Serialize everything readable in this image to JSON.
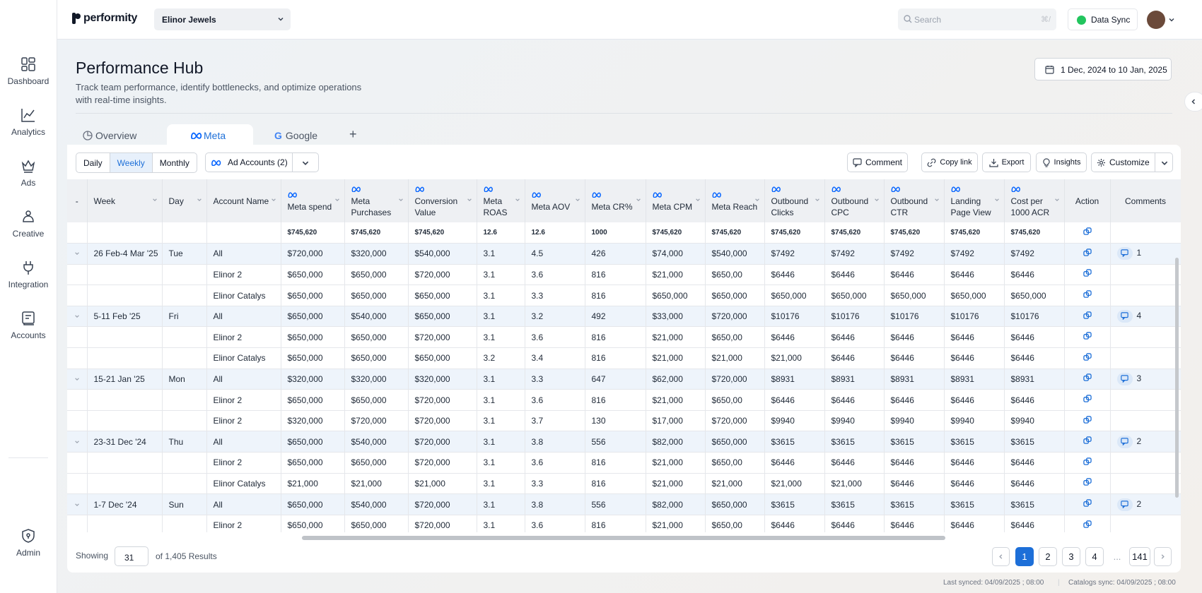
{
  "app": {
    "logo": "performity",
    "brand": "Elinor Jewels",
    "search_placeholder": "Search",
    "search_kbd": "⌘/",
    "data_sync": "Data Sync"
  },
  "sidebar": {
    "items": [
      {
        "label": "Dashboard",
        "icon": "dashboard-icon"
      },
      {
        "label": "Analytics",
        "icon": "analytics-icon"
      },
      {
        "label": "Ads",
        "icon": "crown-icon"
      },
      {
        "label": "Creative",
        "icon": "creative-icon"
      },
      {
        "label": "Integration",
        "icon": "plug-icon"
      },
      {
        "label": "Accounts",
        "icon": "accounts-icon"
      }
    ],
    "admin": "Admin"
  },
  "page": {
    "title": "Performance Hub",
    "subtitle": "Track team performance, identify bottlenecks, and optimize operations with real-time insights.",
    "date_range": "1 Dec, 2024 to 10 Jan, 2025"
  },
  "tabs": [
    "Overview",
    "Meta",
    "Google"
  ],
  "toolbar": {
    "periods": [
      "Daily",
      "Weekly",
      "Monthly"
    ],
    "active_period": "Weekly",
    "ad_accounts": "Ad Accounts (2)",
    "comment": "Comment",
    "copy_link": "Copy link",
    "export": "Export",
    "insights": "Insights",
    "customize": "Customize"
  },
  "table": {
    "columns": [
      "-",
      "Week",
      "Day",
      "Account Name",
      "Meta spend",
      "Meta Purchases",
      "Conversion Value",
      "Meta ROAS",
      "Meta AOV",
      "Meta CR%",
      "Meta CPM",
      "Meta Reach",
      "Outbound Clicks",
      "Outbound CPC",
      "Outbound CTR",
      "Landing Page View",
      "Cost per 1000 ACR",
      "Action",
      "Comments"
    ],
    "summary": [
      "",
      "",
      "",
      "",
      "$745,620",
      "$745,620",
      "$745,620",
      "12.6",
      "12.6",
      "1000",
      "$745,620",
      "$745,620",
      "$745,620",
      "$745,620",
      "$745,620",
      "$745,620",
      "$745,620"
    ],
    "rows": [
      {
        "group": true,
        "week": "26 Feb-4 Mar '25",
        "day": "Tue",
        "account": "All",
        "v": [
          "$720,000",
          "$320,000",
          "$540,000",
          "3.1",
          "4.5",
          "426",
          "$74,000",
          "$540,000",
          "$7492",
          "$7492",
          "$7492",
          "$7492",
          "$7492"
        ],
        "comments": "1"
      },
      {
        "group": false,
        "week": "",
        "day": "",
        "account": "Elinor 2",
        "v": [
          "$650,000",
          "$650,000",
          "$720,000",
          "3.1",
          "3.6",
          "816",
          "$21,000",
          "$650,00",
          "$6446",
          "$6446",
          "$6446",
          "$6446",
          "$6446"
        ],
        "comments": ""
      },
      {
        "group": false,
        "week": "",
        "day": "",
        "account": "Elinor Catalys",
        "v": [
          "$650,000",
          "$650,000",
          "$650,000",
          "3.1",
          "3.3",
          "816",
          "$650,000",
          "$650,000",
          "$650,000",
          "$650,000",
          "$650,000",
          "$650,000",
          "$650,000"
        ],
        "comments": ""
      },
      {
        "group": true,
        "week": "5-11 Feb '25",
        "day": "Fri",
        "account": "All",
        "v": [
          "$650,000",
          "$540,000",
          "$650,000",
          "3.1",
          "3.2",
          "492",
          "$33,000",
          "$720,000",
          "$10176",
          "$10176",
          "$10176",
          "$10176",
          "$10176"
        ],
        "comments": "4"
      },
      {
        "group": false,
        "week": "",
        "day": "",
        "account": "Elinor 2",
        "v": [
          "$650,000",
          "$650,000",
          "$720,000",
          "3.1",
          "3.6",
          "816",
          "$21,000",
          "$650,00",
          "$6446",
          "$6446",
          "$6446",
          "$6446",
          "$6446"
        ],
        "comments": ""
      },
      {
        "group": false,
        "week": "",
        "day": "",
        "account": "Elinor Catalys",
        "v": [
          "$650,000",
          "$650,000",
          "$650,000",
          "3.2",
          "3.4",
          "816",
          "$21,000",
          "$21,000",
          "$21,000",
          "$6446",
          "$6446",
          "$6446",
          "$6446"
        ],
        "comments": ""
      },
      {
        "group": true,
        "week": "15-21 Jan '25",
        "day": "Mon",
        "account": "All",
        "v": [
          "$320,000",
          "$320,000",
          "$320,000",
          "3.1",
          "3.3",
          "647",
          "$62,000",
          "$720,000",
          "$8931",
          "$8931",
          "$8931",
          "$8931",
          "$8931"
        ],
        "comments": "3"
      },
      {
        "group": false,
        "week": "",
        "day": "",
        "account": "Elinor 2",
        "v": [
          "$650,000",
          "$650,000",
          "$720,000",
          "3.1",
          "3.6",
          "816",
          "$21,000",
          "$650,00",
          "$6446",
          "$6446",
          "$6446",
          "$6446",
          "$6446"
        ],
        "comments": ""
      },
      {
        "group": false,
        "week": "",
        "day": "",
        "account": "Elinor 2",
        "v": [
          "$320,000",
          "$720,000",
          "$720,000",
          "3.1",
          "3.7",
          "130",
          "$17,000",
          "$720,000",
          "$9940",
          "$9940",
          "$9940",
          "$9940",
          "$9940"
        ],
        "comments": ""
      },
      {
        "group": true,
        "week": "23-31 Dec '24",
        "day": "Thu",
        "account": "All",
        "v": [
          "$650,000",
          "$540,000",
          "$720,000",
          "3.1",
          "3.8",
          "556",
          "$82,000",
          "$650,000",
          "$3615",
          "$3615",
          "$3615",
          "$3615",
          "$3615"
        ],
        "comments": "2"
      },
      {
        "group": false,
        "week": "",
        "day": "",
        "account": "Elinor 2",
        "v": [
          "$650,000",
          "$650,000",
          "$720,000",
          "3.1",
          "3.6",
          "816",
          "$21,000",
          "$650,00",
          "$6446",
          "$6446",
          "$6446",
          "$6446",
          "$6446"
        ],
        "comments": ""
      },
      {
        "group": false,
        "week": "",
        "day": "",
        "account": "Elinor Catalys",
        "v": [
          "$21,000",
          "$21,000",
          "$21,000",
          "3.1",
          "3.3",
          "816",
          "$21,000",
          "$21,000",
          "$21,000",
          "$21,000",
          "$6446",
          "$6446",
          "$6446"
        ],
        "comments": ""
      },
      {
        "group": true,
        "week": "1-7 Dec '24",
        "day": "Sun",
        "account": "All",
        "v": [
          "$650,000",
          "$540,000",
          "$720,000",
          "3.1",
          "3.8",
          "556",
          "$82,000",
          "$650,000",
          "$3615",
          "$3615",
          "$3615",
          "$3615",
          "$3615"
        ],
        "comments": "2"
      },
      {
        "group": false,
        "week": "",
        "day": "",
        "account": "Elinor 2",
        "v": [
          "$650,000",
          "$650,000",
          "$720,000",
          "3.1",
          "3.6",
          "816",
          "$21,000",
          "$650,00",
          "$6446",
          "$6446",
          "$6446",
          "$6446",
          "$6446"
        ],
        "comments": ""
      }
    ]
  },
  "pagination": {
    "showing": "Showing",
    "per_page": "31",
    "of": "of 1,405 Results",
    "pages": [
      "1",
      "2",
      "3",
      "4",
      "...",
      "141"
    ],
    "active": "1"
  },
  "sync": {
    "last": "Last synced: 04/09/2025 ; 08:00",
    "catalog": "Catalogs sync: 04/09/2025 ; 08:00"
  },
  "colors": {
    "accent": "#1d6fd8",
    "sync_ok": "#22c55e",
    "meta_blue": "#0866ff"
  }
}
